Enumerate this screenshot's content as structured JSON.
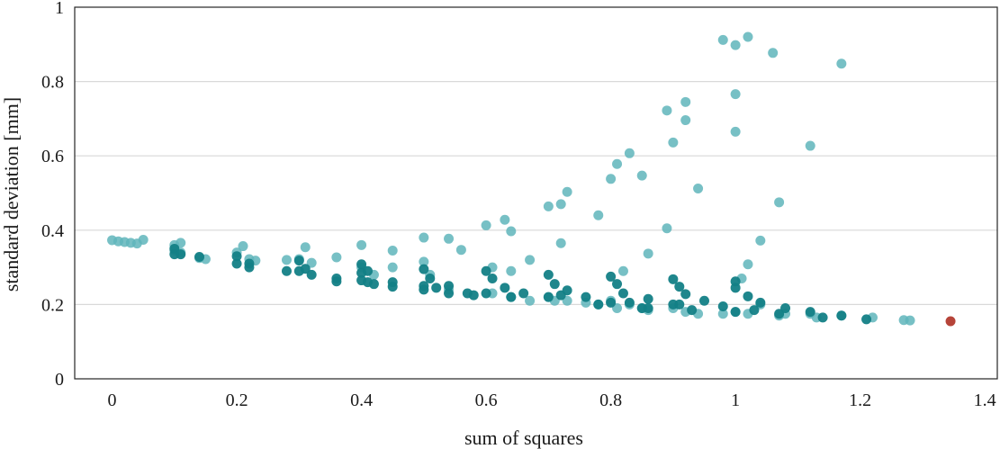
{
  "chart_data": {
    "type": "scatter",
    "xlabel": "sum of squares",
    "ylabel": "standard deviation [mm]",
    "xlim": [
      -0.06,
      1.42
    ],
    "ylim": [
      0,
      1
    ],
    "xticks": [
      "0",
      "0.2",
      "0.4",
      "0.6",
      "0.8",
      "1",
      "1.2",
      "1.4"
    ],
    "yticks": [
      "0",
      "0.2",
      "0.4",
      "0.6",
      "0.8",
      "1"
    ],
    "grid": "horizontal",
    "colors": {
      "light": "#5fb5bb",
      "dark": "#137f86",
      "highlight": "#b23a2e"
    },
    "series": [
      {
        "style": "light",
        "points": [
          [
            0.0,
            0.373
          ],
          [
            0.01,
            0.37
          ],
          [
            0.02,
            0.368
          ],
          [
            0.03,
            0.366
          ],
          [
            0.04,
            0.364
          ],
          [
            0.05,
            0.374
          ],
          [
            0.1,
            0.36
          ],
          [
            0.11,
            0.366
          ],
          [
            0.1,
            0.345
          ],
          [
            0.11,
            0.34
          ],
          [
            0.14,
            0.325
          ],
          [
            0.15,
            0.322
          ],
          [
            0.2,
            0.34
          ],
          [
            0.21,
            0.357
          ],
          [
            0.22,
            0.322
          ],
          [
            0.23,
            0.318
          ],
          [
            0.28,
            0.32
          ],
          [
            0.3,
            0.322
          ],
          [
            0.31,
            0.354
          ],
          [
            0.32,
            0.312
          ],
          [
            0.36,
            0.327
          ],
          [
            0.4,
            0.3
          ],
          [
            0.4,
            0.36
          ],
          [
            0.42,
            0.28
          ],
          [
            0.45,
            0.345
          ],
          [
            0.45,
            0.3
          ],
          [
            0.5,
            0.38
          ],
          [
            0.5,
            0.315
          ],
          [
            0.51,
            0.28
          ],
          [
            0.54,
            0.377
          ],
          [
            0.54,
            0.24
          ],
          [
            0.56,
            0.347
          ],
          [
            0.6,
            0.413
          ],
          [
            0.61,
            0.3
          ],
          [
            0.61,
            0.23
          ],
          [
            0.63,
            0.428
          ],
          [
            0.64,
            0.397
          ],
          [
            0.64,
            0.29
          ],
          [
            0.64,
            0.22
          ],
          [
            0.67,
            0.32
          ],
          [
            0.67,
            0.21
          ],
          [
            0.7,
            0.464
          ],
          [
            0.7,
            0.22
          ],
          [
            0.71,
            0.21
          ],
          [
            0.72,
            0.47
          ],
          [
            0.72,
            0.365
          ],
          [
            0.73,
            0.503
          ],
          [
            0.73,
            0.21
          ],
          [
            0.76,
            0.205
          ],
          [
            0.78,
            0.44
          ],
          [
            0.78,
            0.2
          ],
          [
            0.8,
            0.538
          ],
          [
            0.8,
            0.21
          ],
          [
            0.81,
            0.578
          ],
          [
            0.81,
            0.19
          ],
          [
            0.82,
            0.29
          ],
          [
            0.83,
            0.607
          ],
          [
            0.83,
            0.2
          ],
          [
            0.85,
            0.547
          ],
          [
            0.85,
            0.19
          ],
          [
            0.86,
            0.337
          ],
          [
            0.86,
            0.185
          ],
          [
            0.89,
            0.722
          ],
          [
            0.89,
            0.405
          ],
          [
            0.9,
            0.636
          ],
          [
            0.9,
            0.19
          ],
          [
            0.92,
            0.745
          ],
          [
            0.92,
            0.696
          ],
          [
            0.92,
            0.18
          ],
          [
            0.94,
            0.512
          ],
          [
            0.94,
            0.175
          ],
          [
            0.98,
            0.912
          ],
          [
            0.98,
            0.175
          ],
          [
            1.0,
            0.898
          ],
          [
            1.0,
            0.766
          ],
          [
            1.0,
            0.665
          ],
          [
            1.0,
            0.18
          ],
          [
            1.01,
            0.27
          ],
          [
            1.02,
            0.92
          ],
          [
            1.02,
            0.308
          ],
          [
            1.02,
            0.175
          ],
          [
            1.04,
            0.372
          ],
          [
            1.04,
            0.2
          ],
          [
            1.06,
            0.877
          ],
          [
            1.07,
            0.17
          ],
          [
            1.07,
            0.475
          ],
          [
            1.08,
            0.175
          ],
          [
            1.12,
            0.627
          ],
          [
            1.12,
            0.175
          ],
          [
            1.13,
            0.165
          ],
          [
            1.17,
            0.848
          ],
          [
            1.17,
            0.17
          ],
          [
            1.22,
            0.165
          ],
          [
            1.27,
            0.158
          ],
          [
            1.28,
            0.157
          ]
        ]
      },
      {
        "style": "dark",
        "points": [
          [
            0.1,
            0.35
          ],
          [
            0.1,
            0.335
          ],
          [
            0.11,
            0.335
          ],
          [
            0.14,
            0.328
          ],
          [
            0.2,
            0.33
          ],
          [
            0.2,
            0.31
          ],
          [
            0.22,
            0.31
          ],
          [
            0.22,
            0.3
          ],
          [
            0.28,
            0.29
          ],
          [
            0.3,
            0.29
          ],
          [
            0.3,
            0.318
          ],
          [
            0.31,
            0.296
          ],
          [
            0.32,
            0.28
          ],
          [
            0.36,
            0.27
          ],
          [
            0.36,
            0.262
          ],
          [
            0.4,
            0.308
          ],
          [
            0.4,
            0.285
          ],
          [
            0.4,
            0.265
          ],
          [
            0.41,
            0.29
          ],
          [
            0.41,
            0.26
          ],
          [
            0.42,
            0.255
          ],
          [
            0.45,
            0.26
          ],
          [
            0.45,
            0.248
          ],
          [
            0.5,
            0.295
          ],
          [
            0.5,
            0.25
          ],
          [
            0.5,
            0.24
          ],
          [
            0.51,
            0.27
          ],
          [
            0.52,
            0.245
          ],
          [
            0.54,
            0.25
          ],
          [
            0.54,
            0.23
          ],
          [
            0.57,
            0.23
          ],
          [
            0.58,
            0.225
          ],
          [
            0.6,
            0.29
          ],
          [
            0.6,
            0.23
          ],
          [
            0.61,
            0.27
          ],
          [
            0.63,
            0.245
          ],
          [
            0.64,
            0.22
          ],
          [
            0.66,
            0.23
          ],
          [
            0.7,
            0.28
          ],
          [
            0.7,
            0.22
          ],
          [
            0.71,
            0.255
          ],
          [
            0.72,
            0.225
          ],
          [
            0.73,
            0.238
          ],
          [
            0.76,
            0.22
          ],
          [
            0.78,
            0.2
          ],
          [
            0.8,
            0.275
          ],
          [
            0.8,
            0.205
          ],
          [
            0.81,
            0.255
          ],
          [
            0.82,
            0.23
          ],
          [
            0.83,
            0.205
          ],
          [
            0.85,
            0.19
          ],
          [
            0.86,
            0.215
          ],
          [
            0.86,
            0.19
          ],
          [
            0.9,
            0.268
          ],
          [
            0.9,
            0.2
          ],
          [
            0.91,
            0.248
          ],
          [
            0.91,
            0.2
          ],
          [
            0.92,
            0.228
          ],
          [
            0.93,
            0.185
          ],
          [
            0.95,
            0.21
          ],
          [
            0.98,
            0.195
          ],
          [
            1.0,
            0.262
          ],
          [
            1.0,
            0.245
          ],
          [
            1.0,
            0.18
          ],
          [
            1.02,
            0.222
          ],
          [
            1.03,
            0.185
          ],
          [
            1.04,
            0.205
          ],
          [
            1.07,
            0.175
          ],
          [
            1.08,
            0.19
          ],
          [
            1.12,
            0.18
          ],
          [
            1.14,
            0.165
          ],
          [
            1.17,
            0.17
          ],
          [
            1.21,
            0.16
          ]
        ]
      },
      {
        "style": "highlight",
        "points": [
          [
            1.345,
            0.155
          ]
        ]
      }
    ]
  }
}
